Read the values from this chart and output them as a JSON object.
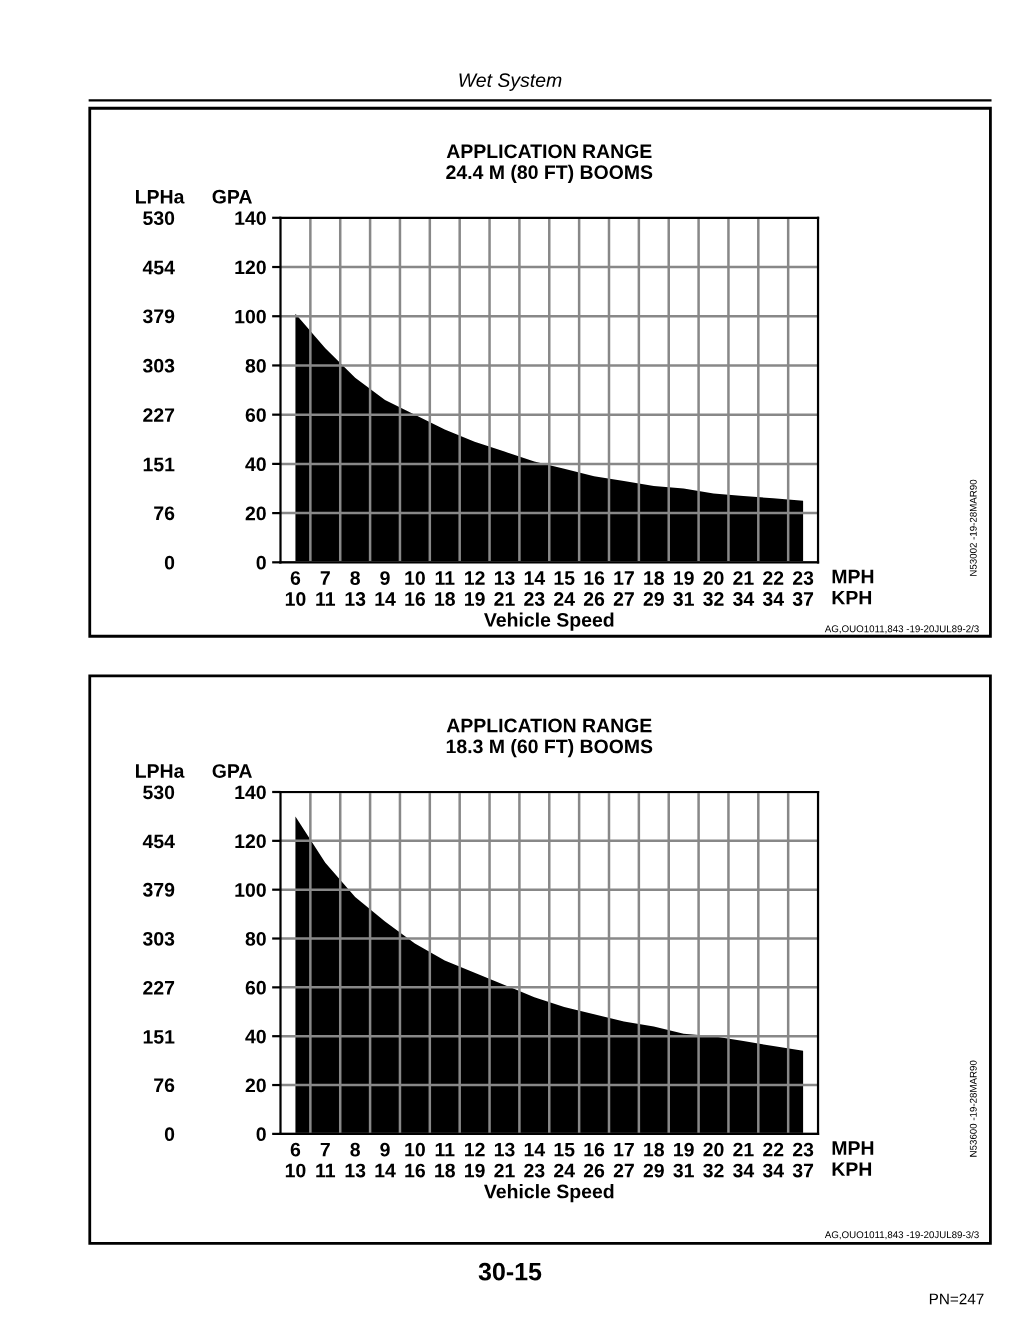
{
  "chart_data": [
    {
      "type": "area",
      "title": "APPLICATION RANGE\n24.4 M (80 FT) BOOMS",
      "xlabel": "Vehicle Speed",
      "ylabel": "GPA",
      "y2label": "LPHa",
      "annotations": [
        "Wet System",
        "MPH",
        "KPH",
        "N53002 -19-28MAR90",
        "AG,OUO1011,843 -19-20JUL89-2/3"
      ],
      "categories": [
        "6\n10",
        "7\n11",
        "8\n13",
        "9\n14",
        "10\n16",
        "11\n18",
        "12\n19",
        "13\n21",
        "14\n23",
        "15\n24",
        "16\n26",
        "17\n27",
        "18\n29",
        "19\n31",
        "20\n32",
        "21\n34",
        "22\n34",
        "23\n37"
      ],
      "ylim": [
        0,
        140
      ],
      "yticks": [
        0,
        20,
        40,
        60,
        80,
        100,
        120,
        140
      ],
      "y2lim": [
        0,
        530
      ],
      "y2ticks": [
        0,
        76,
        151,
        227,
        303,
        379,
        454,
        530
      ],
      "grid": true,
      "series": [
        {
          "color": "#000000",
          "values": [
            101,
            87,
            75,
            66,
            60,
            54,
            49,
            45,
            41,
            38,
            35,
            33,
            31,
            30,
            28,
            27,
            26,
            25
          ]
        }
      ]
    },
    {
      "type": "area",
      "title": "APPLICATION RANGE\n18.3 M (60 FT) BOOMS",
      "xlabel": "Vehicle Speed",
      "ylabel": "GPA",
      "y2label": "LPHa",
      "annotations": [
        "MPH",
        "KPH",
        "N53600 -19-28MAR90",
        "AG,OUO1011,843 -19-20JUL89-3/3",
        "30-15",
        "PN=247"
      ],
      "categories": [
        "6\n10",
        "7\n11",
        "8\n13",
        "9\n14",
        "10\n16",
        "11\n18",
        "12\n19",
        "13\n21",
        "14\n23",
        "15\n24",
        "16\n26",
        "17\n27",
        "18\n29",
        "19\n31",
        "20\n32",
        "21\n34",
        "22\n34",
        "23\n37"
      ],
      "ylim": [
        0,
        140
      ],
      "yticks": [
        0,
        20,
        40,
        60,
        80,
        100,
        120,
        140
      ],
      "y2lim": [
        0,
        530
      ],
      "y2ticks": [
        0,
        76,
        151,
        227,
        303,
        379,
        454,
        530
      ],
      "grid": true,
      "series": [
        {
          "color": "#000000",
          "values": [
            130,
            111,
            97,
            87,
            78,
            71,
            66,
            61,
            56,
            52,
            49,
            46,
            44,
            41,
            40,
            38,
            36,
            34
          ]
        }
      ]
    }
  ]
}
